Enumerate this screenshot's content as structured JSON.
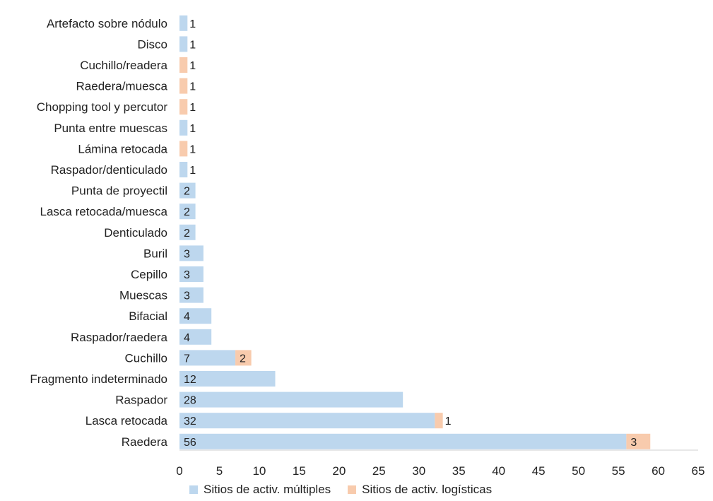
{
  "chart_data": {
    "type": "bar",
    "orientation": "horizontal",
    "stacked": true,
    "categories": [
      "Artefacto sobre nódulo",
      "Disco",
      "Cuchillo/readera",
      "Raedera/muesca",
      "Chopping tool y percutor",
      "Punta entre muescas",
      "Lámina retocada",
      "Raspador/denticulado",
      "Punta de proyectil",
      "Lasca retocada/muesca",
      "Denticulado",
      "Buril",
      "Cepillo",
      "Muescas",
      "Bifacial",
      "Raspador/raedera",
      "Cuchillo",
      "Fragmento indeterminado",
      "Raspador",
      "Lasca retocada",
      "Raedera"
    ],
    "series": [
      {
        "name": "Sitios de activ. múltiples",
        "color": "#bdd7ee",
        "values": [
          1,
          1,
          0,
          0,
          0,
          1,
          0,
          1,
          2,
          2,
          2,
          3,
          3,
          3,
          4,
          4,
          7,
          12,
          28,
          32,
          56
        ]
      },
      {
        "name": "Sitios de activ. logísticas",
        "color": "#f8cbad",
        "values": [
          0,
          0,
          1,
          1,
          1,
          0,
          1,
          0,
          0,
          0,
          0,
          0,
          0,
          0,
          0,
          0,
          2,
          0,
          0,
          1,
          3
        ]
      }
    ],
    "xlim": [
      0,
      65
    ],
    "xticks": [
      "0",
      "5",
      "10",
      "15",
      "20",
      "25",
      "30",
      "35",
      "40",
      "45",
      "50",
      "55",
      "60",
      "65"
    ],
    "xlabel": "",
    "ylabel": "",
    "title": "",
    "grid": false,
    "legend": "bottom"
  }
}
